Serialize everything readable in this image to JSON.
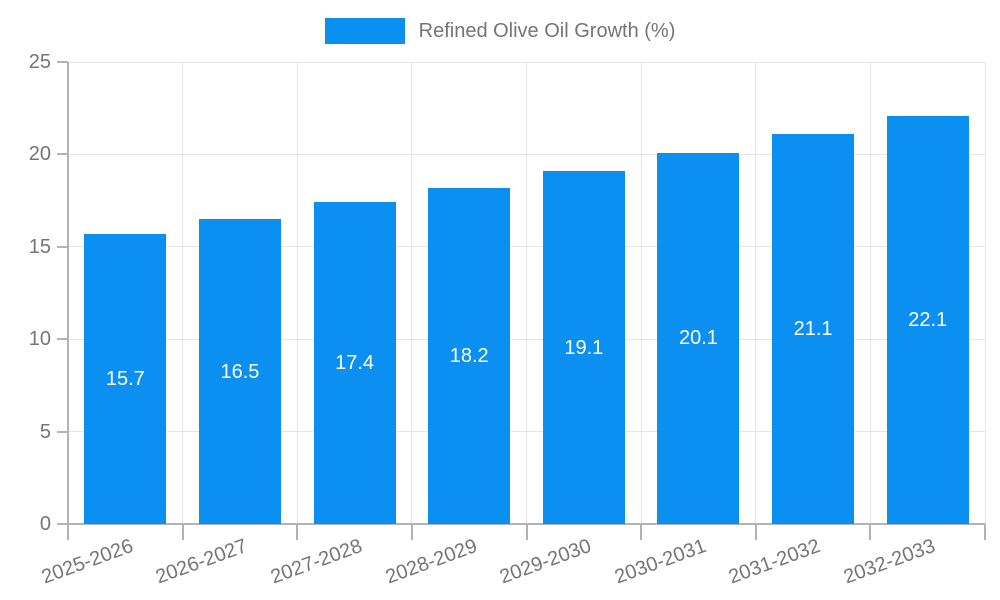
{
  "chart_data": {
    "type": "bar",
    "legend_label": "Refined Olive Oil Growth (%)",
    "categories": [
      "2025-2026",
      "2026-2027",
      "2027-2028",
      "2028-2029",
      "2029-2030",
      "2030-2031",
      "2031-2032",
      "2032-2033"
    ],
    "values": [
      15.7,
      16.5,
      17.4,
      18.2,
      19.1,
      20.1,
      21.1,
      22.1
    ],
    "value_labels": [
      "15.7",
      "16.5",
      "17.4",
      "18.2",
      "19.1",
      "20.1",
      "21.1",
      "22.1"
    ],
    "xlabel": "",
    "ylabel": "",
    "ylim": [
      0,
      25
    ],
    "yticks": [
      0,
      5,
      10,
      15,
      20,
      25
    ],
    "grid": true,
    "legend_position": "top-center",
    "x_label_rotation_deg": -20,
    "colors": {
      "bar": "#0b90f2",
      "grid": "#e6e6e6",
      "axis": "#b3b3b3",
      "tick_text": "#757575",
      "value_text": "#ffffff",
      "background": "#ffffff"
    }
  }
}
